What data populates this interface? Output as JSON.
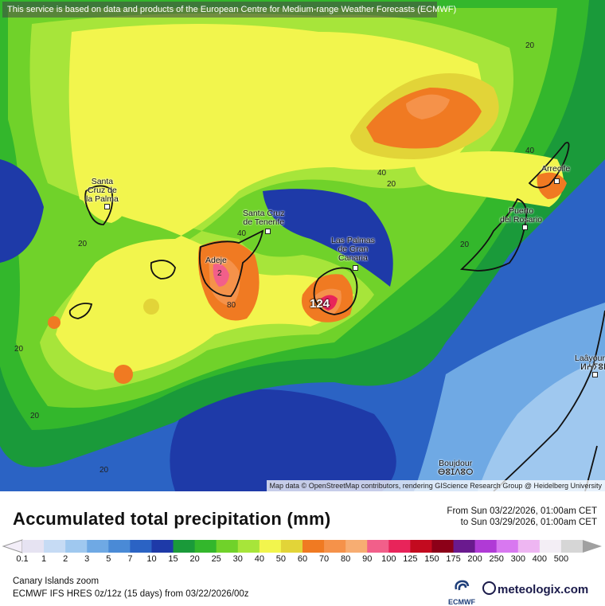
{
  "banner": "This service is based on data and products of the European Centre for Medium-range Weather Forecasts (ECMWF)",
  "attribution": "Map data © OpenStreetMap contributors, rendering GIScience Research Group @ Heidelberg University",
  "cities": {
    "santa_cruz_la_palma": "Santa\nCruz de\nla Palma",
    "santa_cruz_tenerife": "Santa Cruz\nde Tenerife",
    "adeje": "Adeje",
    "las_palmas": "Las Palmas\nde Gran\nCanaria",
    "arrecife": "Arrecife",
    "puerto_rosario": "Puerto\ndel Rosario",
    "laayoune": "Laâyoune\nⵍⵄⵢⵓⵏ",
    "boujdour": "Boujdour\nⴱⵓⵊⴷⵓⵔ"
  },
  "map_values": {
    "v20a": "20",
    "v20b": "20",
    "v20c": "20",
    "v20d": "20",
    "v20e": "20",
    "v20f": "20",
    "v20g": "20",
    "v40a": "40",
    "v40b": "40",
    "v40c": "40",
    "v80": "80",
    "v124": "124",
    "v2": "2"
  },
  "footer": {
    "title": "Accumulated total precipitation (mm)",
    "from": "From Sun 03/22/2026, 01:00am CET",
    "to": "to Sun 03/29/2026, 01:00am CET",
    "region": "Canary Islands zoom",
    "model": "ECMWF IFS HRES 0z/12z (15 days)  from  03/22/2026/00z",
    "ecmwf_logo": "ECMWF",
    "brand": "meteologix.com"
  },
  "scale": {
    "labels": [
      "0.1",
      "1",
      "2",
      "3",
      "5",
      "7",
      "10",
      "15",
      "20",
      "25",
      "30",
      "40",
      "50",
      "60",
      "70",
      "80",
      "90",
      "100",
      "125",
      "150",
      "175",
      "200",
      "250",
      "300",
      "400",
      "500"
    ],
    "colors": [
      "#e6e3f2",
      "#c6dbf4",
      "#9fc8ef",
      "#6fa9e4",
      "#4a8ad6",
      "#2b63c4",
      "#1e3aa8",
      "#1a9a3a",
      "#33b72c",
      "#70d22a",
      "#a7e53a",
      "#f2f54d",
      "#e2d438",
      "#f07a22",
      "#f5924a",
      "#f7ad72",
      "#f25f8a",
      "#e8245a",
      "#c30a1f",
      "#8c0018",
      "#6a1a8e",
      "#b03ad6",
      "#d878f0",
      "#eeb6f2",
      "#f3eef5",
      "#d6d6d6"
    ]
  }
}
